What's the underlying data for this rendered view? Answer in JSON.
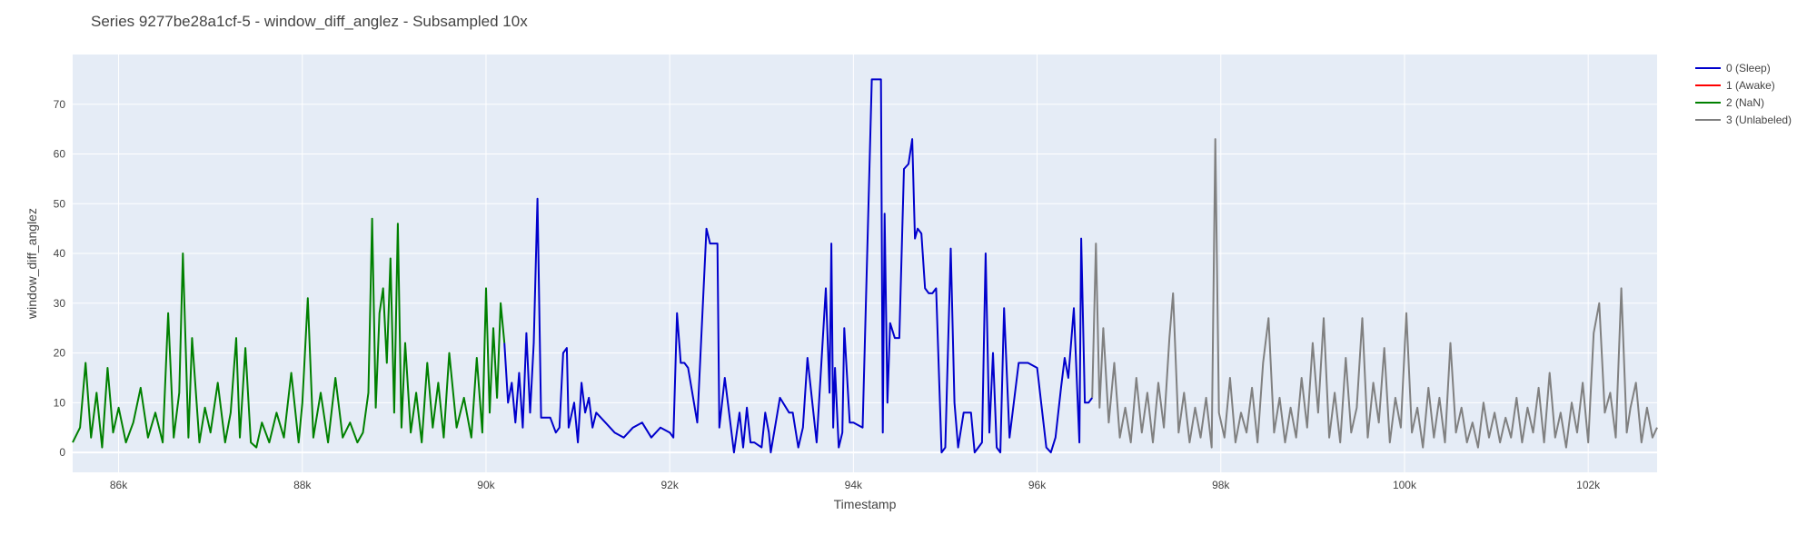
{
  "chart_data": {
    "type": "line",
    "title": "Series 9277be28a1cf-5 - window_diff_anglez - Subsampled 10x",
    "xlabel": "Timestamp",
    "ylabel": "window_diff_anglez",
    "xlim": [
      85500,
      102750
    ],
    "ylim": [
      -4,
      80
    ],
    "x_ticks": [
      86000,
      88000,
      90000,
      92000,
      94000,
      96000,
      98000,
      100000,
      102000
    ],
    "x_tick_labels": [
      "86k",
      "88k",
      "90k",
      "92k",
      "94k",
      "96k",
      "98k",
      "100k",
      "102k"
    ],
    "y_ticks": [
      0,
      10,
      20,
      30,
      40,
      50,
      60,
      70
    ],
    "y_tick_labels": [
      "0",
      "10",
      "20",
      "30",
      "40",
      "50",
      "60",
      "70"
    ],
    "grid": true,
    "plot_background": "#E5ECF6",
    "legend_position": "top-right",
    "series": [
      {
        "name": "0 (Sleep)",
        "color": "#0000CC",
        "x": [
          90200,
          90240,
          90280,
          90320,
          90360,
          90400,
          90440,
          90480,
          90520,
          90560,
          90600,
          90700,
          90760,
          90800,
          90840,
          90880,
          90900,
          90960,
          91000,
          91040,
          91080,
          91120,
          91160,
          91200,
          91300,
          91400,
          91500,
          91600,
          91700,
          91800,
          91900,
          92000,
          92040,
          92080,
          92120,
          92160,
          92200,
          92300,
          92400,
          92440,
          92480,
          92520,
          92540,
          92600,
          92700,
          92760,
          92800,
          92840,
          92880,
          92920,
          93000,
          93040,
          93080,
          93100,
          93200,
          93300,
          93340,
          93400,
          93450,
          93500,
          93600,
          93700,
          93740,
          93760,
          93780,
          93800,
          93840,
          93880,
          93900,
          93960,
          94000,
          94100,
          94200,
          94300,
          94320,
          94340,
          94370,
          94400,
          94450,
          94500,
          94550,
          94600,
          94640,
          94670,
          94700,
          94740,
          94780,
          94820,
          94860,
          94900,
          94960,
          95000,
          95060,
          95100,
          95140,
          95200,
          95280,
          95320,
          95360,
          95400,
          95440,
          95480,
          95520,
          95560,
          95600,
          95640,
          95700,
          95800,
          95900,
          96000,
          96100,
          96150,
          96200,
          96260,
          96300,
          96340,
          96400,
          96460,
          96480,
          96520,
          96560,
          96600
        ],
        "y": [
          22,
          10,
          14,
          6,
          16,
          5,
          24,
          8,
          22,
          51,
          7,
          7,
          4,
          5,
          20,
          21,
          5,
          10,
          2,
          14,
          8,
          11,
          5,
          8,
          6,
          4,
          3,
          5,
          6,
          3,
          5,
          4,
          3,
          28,
          18,
          18,
          17,
          6,
          45,
          42,
          42,
          42,
          5,
          15,
          0,
          8,
          1,
          9,
          2,
          2,
          1,
          8,
          4,
          0,
          11,
          8,
          8,
          1,
          5,
          19,
          2,
          33,
          12,
          42,
          5,
          17,
          1,
          4,
          25,
          6,
          6,
          5,
          75,
          75,
          4,
          48,
          10,
          26,
          23,
          23,
          57,
          58,
          63,
          43,
          45,
          44,
          33,
          32,
          32,
          33,
          0,
          1,
          41,
          10,
          1,
          8,
          8,
          0,
          1,
          2,
          40,
          4,
          20,
          1,
          0,
          29,
          3,
          18,
          18,
          17,
          1,
          0,
          3,
          13,
          19,
          15,
          29,
          2,
          43,
          10,
          10,
          11
        ]
      },
      {
        "name": "1 (Awake)",
        "color": "#FF0000",
        "x": [],
        "y": []
      },
      {
        "name": "2 (NaN)",
        "color": "#008000",
        "x": [
          85500,
          85580,
          85640,
          85700,
          85760,
          85820,
          85880,
          85940,
          86000,
          86080,
          86160,
          86240,
          86320,
          86400,
          86480,
          86540,
          86600,
          86660,
          86700,
          86760,
          86800,
          86880,
          86940,
          87000,
          87080,
          87160,
          87220,
          87280,
          87320,
          87380,
          87440,
          87500,
          87560,
          87640,
          87720,
          87800,
          87880,
          87960,
          88000,
          88060,
          88120,
          88200,
          88280,
          88360,
          88440,
          88520,
          88600,
          88660,
          88720,
          88760,
          88800,
          88840,
          88880,
          88920,
          88960,
          89000,
          89040,
          89080,
          89120,
          89180,
          89240,
          89300,
          89360,
          89420,
          89480,
          89540,
          89600,
          89680,
          89760,
          89840,
          89900,
          89960,
          90000,
          90040,
          90080,
          90120,
          90160,
          90200
        ],
        "y": [
          2,
          5,
          18,
          3,
          12,
          1,
          17,
          4,
          9,
          2,
          6,
          13,
          3,
          8,
          2,
          28,
          3,
          12,
          40,
          3,
          23,
          2,
          9,
          4,
          14,
          2,
          8,
          23,
          3,
          21,
          2,
          1,
          6,
          2,
          8,
          3,
          16,
          2,
          10,
          31,
          3,
          12,
          2,
          15,
          3,
          6,
          2,
          4,
          12,
          47,
          9,
          28,
          33,
          18,
          39,
          8,
          46,
          5,
          22,
          4,
          12,
          2,
          18,
          5,
          14,
          3,
          20,
          5,
          11,
          3,
          19,
          4,
          33,
          8,
          25,
          11,
          30,
          22
        ]
      },
      {
        "name": "3 (Unlabeled)",
        "color": "#808080",
        "x": [
          96600,
          96640,
          96680,
          96720,
          96780,
          96840,
          96900,
          96960,
          97020,
          97080,
          97140,
          97200,
          97260,
          97320,
          97380,
          97440,
          97480,
          97540,
          97600,
          97660,
          97720,
          97780,
          97840,
          97900,
          97940,
          97980,
          98040,
          98100,
          98160,
          98220,
          98280,
          98340,
          98400,
          98460,
          98520,
          98580,
          98640,
          98700,
          98760,
          98820,
          98880,
          98940,
          99000,
          99060,
          99120,
          99180,
          99240,
          99300,
          99360,
          99420,
          99480,
          99540,
          99600,
          99660,
          99720,
          99780,
          99840,
          99900,
          99960,
          100020,
          100080,
          100140,
          100200,
          100260,
          100320,
          100380,
          100440,
          100500,
          100560,
          100620,
          100680,
          100740,
          100800,
          100860,
          100920,
          100980,
          101040,
          101100,
          101160,
          101220,
          101280,
          101340,
          101400,
          101460,
          101520,
          101580,
          101640,
          101700,
          101760,
          101820,
          101880,
          101940,
          102000,
          102060,
          102120,
          102180,
          102240,
          102300,
          102360,
          102420,
          102460,
          102520,
          102580,
          102640,
          102700,
          102750
        ],
        "y": [
          11,
          42,
          9,
          25,
          6,
          18,
          3,
          9,
          2,
          15,
          4,
          12,
          2,
          14,
          5,
          23,
          32,
          4,
          12,
          2,
          9,
          3,
          11,
          1,
          63,
          8,
          3,
          15,
          2,
          8,
          4,
          13,
          2,
          18,
          27,
          4,
          11,
          2,
          9,
          3,
          15,
          5,
          22,
          8,
          27,
          3,
          12,
          2,
          19,
          4,
          9,
          27,
          3,
          14,
          6,
          21,
          2,
          11,
          5,
          28,
          4,
          9,
          1,
          13,
          3,
          11,
          2,
          22,
          4,
          9,
          2,
          6,
          1,
          10,
          3,
          8,
          2,
          7,
          3,
          11,
          2,
          9,
          4,
          13,
          2,
          16,
          3,
          8,
          1,
          10,
          4,
          14,
          2,
          24,
          30,
          8,
          12,
          3,
          33,
          4,
          9,
          14,
          2,
          9,
          3,
          5
        ]
      }
    ]
  }
}
